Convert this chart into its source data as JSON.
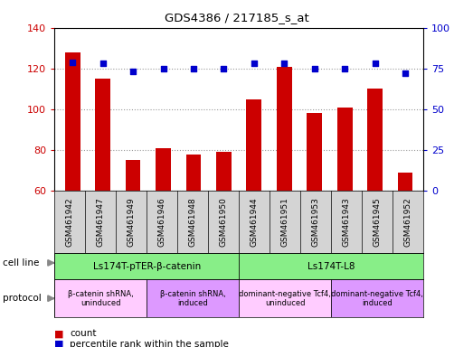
{
  "title": "GDS4386 / 217185_s_at",
  "samples": [
    "GSM461942",
    "GSM461947",
    "GSM461949",
    "GSM461946",
    "GSM461948",
    "GSM461950",
    "GSM461944",
    "GSM461951",
    "GSM461953",
    "GSM461943",
    "GSM461945",
    "GSM461952"
  ],
  "counts": [
    128,
    115,
    75,
    81,
    78,
    79,
    105,
    121,
    98,
    101,
    110,
    69
  ],
  "percentiles": [
    79,
    78,
    73,
    75,
    75,
    75,
    78,
    78,
    75,
    75,
    78,
    72
  ],
  "ylim_left": [
    60,
    140
  ],
  "ylim_right": [
    0,
    100
  ],
  "yticks_left": [
    60,
    80,
    100,
    120,
    140
  ],
  "yticks_right": [
    0,
    25,
    50,
    75,
    100
  ],
  "bar_color": "#cc0000",
  "dot_color": "#0000cc",
  "bar_width": 0.5,
  "cell_line_groups": [
    {
      "label": "Ls174T-pTER-β-catenin",
      "start": 0,
      "end": 6,
      "color": "#88ee88"
    },
    {
      "label": "Ls174T-L8",
      "start": 6,
      "end": 12,
      "color": "#88ee88"
    }
  ],
  "protocol_groups": [
    {
      "label": "β-catenin shRNA,\nuninduced",
      "start": 0,
      "end": 3,
      "color": "#ffccff"
    },
    {
      "label": "β-catenin shRNA,\ninduced",
      "start": 3,
      "end": 6,
      "color": "#dd99ff"
    },
    {
      "label": "dominant-negative Tcf4,\nuninduced",
      "start": 6,
      "end": 9,
      "color": "#ffccff"
    },
    {
      "label": "dominant-negative Tcf4,\ninduced",
      "start": 9,
      "end": 12,
      "color": "#dd99ff"
    }
  ],
  "legend_count_color": "#cc0000",
  "legend_pct_color": "#0000cc",
  "bg_color": "#ffffff",
  "grid_color": "#888888",
  "tick_label_color_left": "#cc0000",
  "tick_label_color_right": "#0000cc",
  "sample_bg_color": "#d4d4d4"
}
